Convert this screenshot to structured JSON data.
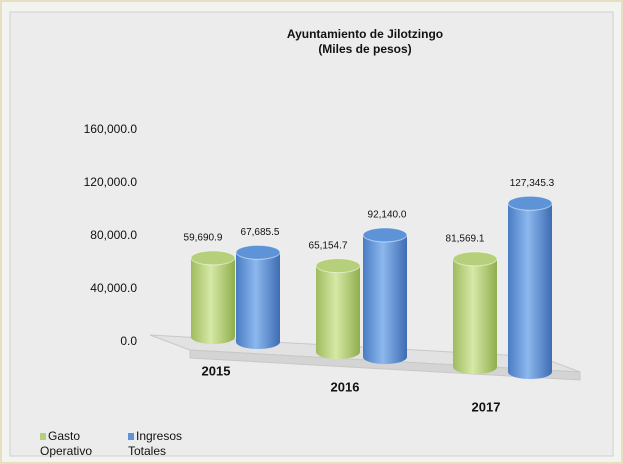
{
  "chart_data": {
    "type": "bar",
    "title": "Ayuntamiento de Jilotzingo",
    "subtitle": "(Miles de pesos)",
    "categories": [
      "2015",
      "2016",
      "2017"
    ],
    "series": [
      {
        "name": "Gasto Operativo",
        "color": "#b5cf7a",
        "values": [
          59690.9,
          65154.7,
          81569.1
        ],
        "value_labels": [
          "59,690.9",
          "65,154.7",
          "81,569.1"
        ]
      },
      {
        "name": "Ingresos Totales",
        "color": "#5f93d8",
        "values": [
          67685.5,
          92140.0,
          127345.3
        ],
        "value_labels": [
          "67,685.5",
          "92,140.0",
          "127,345.3"
        ]
      }
    ],
    "ylim": [
      0,
      160000
    ],
    "yticks": [
      {
        "value": 0,
        "label": "0.0"
      },
      {
        "value": 40000,
        "label": "40,000.0"
      },
      {
        "value": 80000,
        "label": "80,000.0"
      },
      {
        "value": 120000,
        "label": "120,000.0"
      },
      {
        "value": 160000,
        "label": "160,000.0"
      }
    ],
    "legend": "bottom-left"
  }
}
